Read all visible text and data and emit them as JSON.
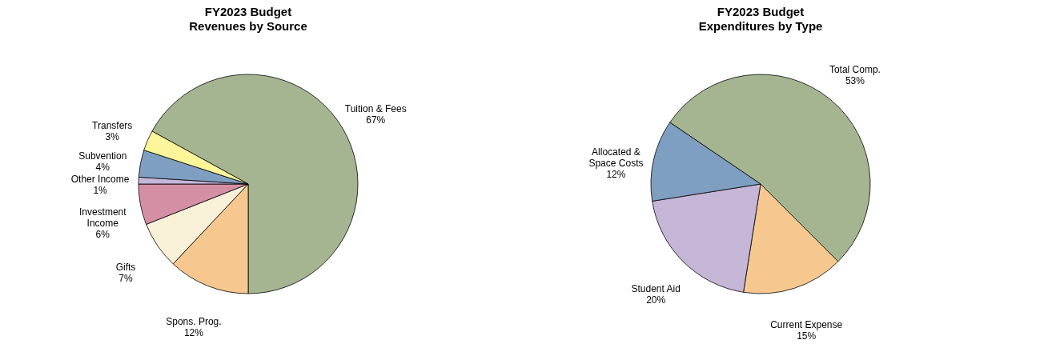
{
  "chart_data": [
    {
      "type": "pie",
      "title": "FY2023 Budget",
      "subtitle": "Revenues by Source",
      "categories": [
        "Tuition & Fees",
        "Spons. Prog.",
        "Gifts",
        "Investment\nIncome",
        "Other Income",
        "Subvention",
        "Transfers"
      ],
      "values": [
        67,
        12,
        7,
        6,
        1,
        4,
        3
      ],
      "value_labels": [
        "67%",
        "12%",
        "7%",
        "6%",
        "1%",
        "4%",
        "3%"
      ],
      "colors": [
        "#a6b591",
        "#f6c88f",
        "#f8f0d7",
        "#d48fa4",
        "#c4b7d9",
        "#7f9fc2",
        "#fcf59a"
      ]
    },
    {
      "type": "pie",
      "title": "FY2023 Budget",
      "subtitle": "Expenditures by Type",
      "categories": [
        "Total Comp.",
        "Current Expense",
        "Student Aid",
        "Allocated &\nSpace Costs"
      ],
      "values": [
        53,
        15,
        20,
        12
      ],
      "value_labels": [
        "53%",
        "15%",
        "20%",
        "12%"
      ],
      "colors": [
        "#a6b591",
        "#f6c88f",
        "#c5b5d7",
        "#7f9fc2"
      ]
    }
  ]
}
